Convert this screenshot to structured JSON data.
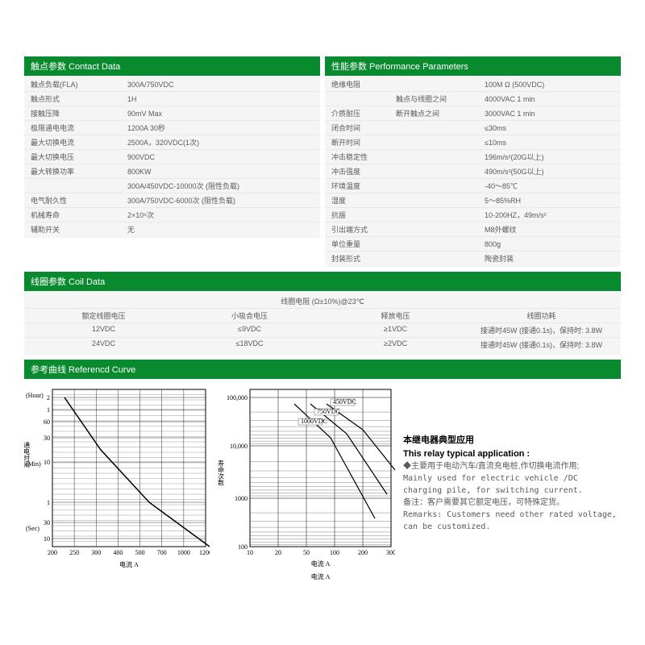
{
  "contact": {
    "title": "触点参数 Contact Data",
    "rows": [
      {
        "label": "触点负载(FLA)",
        "value": "300A/750VDC"
      },
      {
        "label": "触点形式",
        "value": "1H"
      },
      {
        "label": "接触压降",
        "value": "90mV Max"
      },
      {
        "label": "极限通电电流",
        "value": "1200A 30秒"
      },
      {
        "label": "最大切换电流",
        "value": "2500A，320VDC(1次)"
      },
      {
        "label": "最大切换电压",
        "value": "900VDC"
      },
      {
        "label": "最大转换功率",
        "value": "800KW"
      },
      {
        "label": "",
        "value": "300A/450VDC-10000次 (阻性负载)"
      },
      {
        "label": "电气耐久性",
        "value": "300A/750VDC-6000次 (阻性负载)"
      },
      {
        "label": "机械寿命",
        "value": "2×10⁶次"
      },
      {
        "label": "辅助开关",
        "value": "无"
      }
    ]
  },
  "performance": {
    "title": "性能参数 Performance Parameters",
    "rows": [
      {
        "label": "绝缘电阻",
        "mid": "",
        "value": "100M Ω  (500VDC)"
      },
      {
        "label": "",
        "mid": "触点与线圈之间",
        "value": "4000VAC 1 min"
      },
      {
        "label": "介质耐压",
        "mid": "断开触点之间",
        "value": "3000VAC 1 min"
      },
      {
        "label": "闭合时间",
        "mid": "",
        "value": "≤30ms"
      },
      {
        "label": "断开时间",
        "mid": "",
        "value": "≤10ms"
      },
      {
        "label": "冲击稳定性",
        "mid": "",
        "value": "196m/s²(20G以上)"
      },
      {
        "label": "冲击强度",
        "mid": "",
        "value": "490m/s²(50G以上)"
      },
      {
        "label": "环境温度",
        "mid": "",
        "value": "-40～85℃"
      },
      {
        "label": "湿度",
        "mid": "",
        "value": "5～85%RH"
      },
      {
        "label": "抗振",
        "mid": "",
        "value": "10-200HZ，49m/s²"
      },
      {
        "label": "引出端方式",
        "mid": "",
        "value": "M8外螺纹"
      },
      {
        "label": "单位重量",
        "mid": "",
        "value": "800g"
      },
      {
        "label": "封装形式",
        "mid": "",
        "value": "陶瓷封装"
      }
    ]
  },
  "coil": {
    "title": "线圈参数 Coil Data",
    "top_label": "线圈电阻 (Ω±10%)@23℃",
    "headers": [
      "额定线圈电压",
      "小吸合电压",
      "释放电压",
      "线圈功耗"
    ],
    "rows": [
      [
        "12VDC",
        "≤9VDC",
        "≥1VDC",
        "接通时45W (接通0.1s)，保持时: 3.8W"
      ],
      [
        "24VDC",
        "≤18VDC",
        "≥2VDC",
        "接通时45W (接通0.1s)，保持时: 3.8W"
      ]
    ]
  },
  "curve": {
    "title": "参考曲线 Referencd Curve"
  },
  "chart1": {
    "type": "line-loglog",
    "ylabel_top": "(Hour)",
    "ylabel_mid_cn": "通电时间",
    "ylabel_mid": "(Min)",
    "ylabel_bot": "(Sec)",
    "xlabel": "电流  A",
    "y_ticks": [
      {
        "v": "2",
        "y": 10
      },
      {
        "v": "1",
        "y": 25
      },
      {
        "v": "60",
        "y": 40
      },
      {
        "v": "30",
        "y": 60
      },
      {
        "v": "10",
        "y": 90
      },
      {
        "v": "1",
        "y": 140
      },
      {
        "v": "30",
        "y": 165
      },
      {
        "v": "10",
        "y": 185
      }
    ],
    "x_ticks": [
      "200",
      "250",
      "300",
      "400",
      "500",
      "700",
      "1000",
      "1200"
    ],
    "line": [
      [
        15,
        10
      ],
      [
        60,
        75
      ],
      [
        120,
        140
      ],
      [
        195,
        195
      ]
    ],
    "grid_color": "#000000",
    "bg": "#ffffff",
    "stroke": "#000000"
  },
  "chart2": {
    "type": "line-loglog",
    "ylabel": "寿命次数",
    "xlabel": "电流 A",
    "xlabel2": "电流  A",
    "y_ticks": [
      {
        "v": "100,000",
        "y": 10
      },
      {
        "v": "10,000",
        "y": 70
      },
      {
        "v": "1000",
        "y": 135
      },
      {
        "v": "100",
        "y": 195
      }
    ],
    "x_ticks": [
      "10",
      "20",
      "50",
      "100",
      "200",
      "300"
    ],
    "series": [
      {
        "label": "450VDC",
        "pts": [
          [
            95,
            18
          ],
          [
            140,
            50
          ],
          [
            180,
            100
          ]
        ]
      },
      {
        "label": "750VDC",
        "pts": [
          [
            75,
            18
          ],
          [
            120,
            55
          ],
          [
            170,
            130
          ]
        ]
      },
      {
        "label": "1000VDC",
        "pts": [
          [
            55,
            18
          ],
          [
            100,
            60
          ],
          [
            155,
            160
          ]
        ]
      }
    ],
    "grid_color": "#000000",
    "bg": "#ffffff",
    "stroke": "#000000"
  },
  "app": {
    "title_cn": "本继电器典型应用",
    "title_en": "This relay typical application :",
    "line1": "◆主要用于电动汽车/直流充电桩,作切换电流作用;",
    "line2": "Mainly used for electric vehicle /DC charging pile, for switching current.",
    "line3": "备注：客户需要其它额定电压，可特殊定货。",
    "line4": "Remarks: Customers need other rated voltage, can be customized."
  }
}
